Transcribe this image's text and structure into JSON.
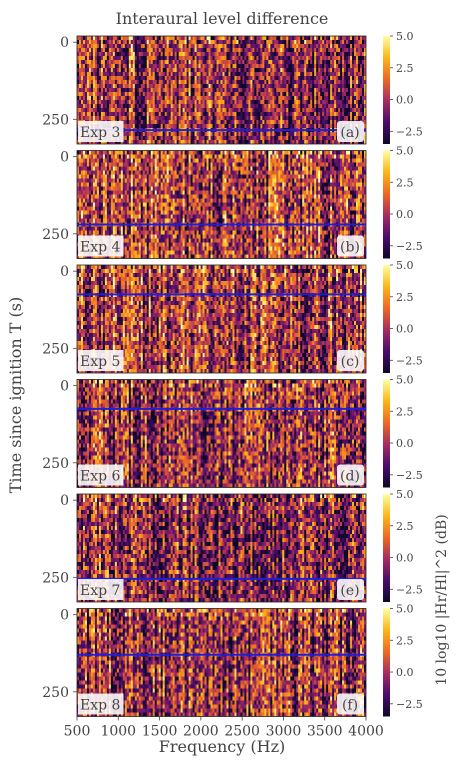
{
  "chart_data": {
    "type": "heatmap",
    "title": "Interaural level difference",
    "xlabel": "Frequency (Hz)",
    "ylabel": "Time since ignition T (s)",
    "xlim": [
      500,
      4000
    ],
    "x_ticks": [
      500,
      1000,
      1500,
      2000,
      2500,
      3000,
      3500,
      4000
    ],
    "y_ticks": [
      0,
      250
    ],
    "colorbar": {
      "label": "10 log10 |Hr/Hl|^2 (dB)",
      "ticks": [
        "5.0",
        "2.5",
        "0.0",
        "−2.5"
      ],
      "range": [
        -3.5,
        5.0
      ],
      "colormap": [
        "#0d0829",
        "#4a0c6b",
        "#a52c60",
        "#ed6925",
        "#fbb61a",
        "#fcffa4"
      ]
    },
    "marker_color": "#1f1fd6",
    "panels": [
      {
        "experiment": "Exp 3",
        "tag": "(a)",
        "t_max": 330,
        "line_t": 285,
        "seed": 3,
        "bias": -0.05
      },
      {
        "experiment": "Exp 4",
        "tag": "(b)",
        "t_max": 330,
        "line_t": 220,
        "seed": 4,
        "bias": 0.12
      },
      {
        "experiment": "Exp 5",
        "tag": "(c)",
        "t_max": 330,
        "line_t": 75,
        "seed": 5,
        "bias": 0.1
      },
      {
        "experiment": "Exp 6",
        "tag": "(d)",
        "t_max": 330,
        "line_t": 75,
        "seed": 6,
        "bias": -0.05
      },
      {
        "experiment": "Exp 7",
        "tag": "(e)",
        "t_max": 330,
        "line_t": 255,
        "seed": 7,
        "bias": -0.12
      },
      {
        "experiment": "Exp 8",
        "tag": "(f)",
        "t_max": 330,
        "line_t": 130,
        "seed": 8,
        "bias": -0.08
      }
    ]
  }
}
